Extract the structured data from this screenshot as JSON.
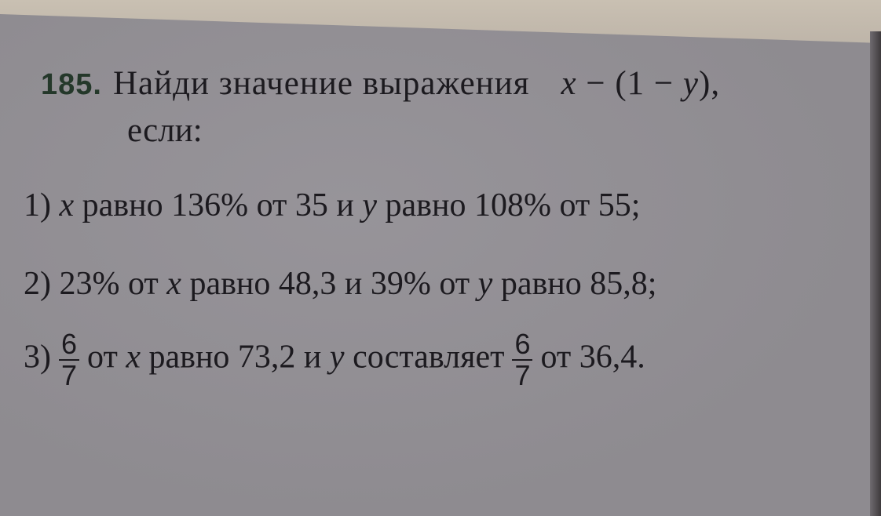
{
  "problem": {
    "number": "185.",
    "title": "Найди значение выражения",
    "expr": {
      "x": "x",
      "op1": " − (1 − ",
      "y": "y",
      "close": "),"
    },
    "title_cont": "если:",
    "items": [
      {
        "label": "1)",
        "x": "x",
        "t1": " равно 136% от 35 и ",
        "y": "y",
        "t2": " равно 108% от 55;"
      },
      {
        "label": "2)",
        "t0": " 23% от ",
        "x": "x",
        "t1": " равно 48,3 и 39% от ",
        "y": "y",
        "t2": " равно 85,8;"
      },
      {
        "label": "3)",
        "frac_num": "6",
        "frac_den": "7",
        "t0": "от ",
        "x": "x",
        "t1": " равно 73,2 и ",
        "y": "y",
        "t2": " составляет",
        "frac2_num": "6",
        "frac2_den": "7",
        "t3": "от  36,4."
      }
    ]
  }
}
